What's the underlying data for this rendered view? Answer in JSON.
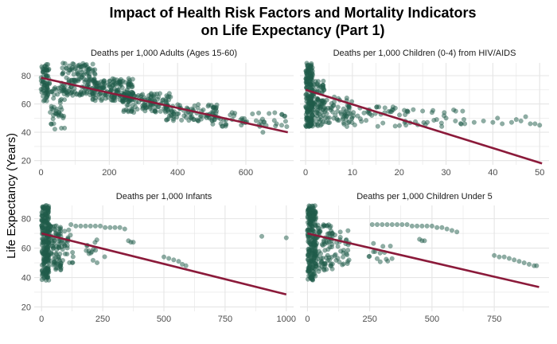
{
  "chart_data": {
    "type": "scatter",
    "title": [
      "Impact of Health Risk Factors and Mortality Indicators",
      "on Life Expectancy (Part 1)"
    ],
    "ylabel": "Life Expectancy (Years)",
    "ylim": [
      17,
      89
    ],
    "yticks": [
      20,
      40,
      60,
      80
    ],
    "colors": {
      "points": "#1f5c4a",
      "trend": "#8b1a3a",
      "grid": "#e5e5e5"
    },
    "grid": true,
    "panels": [
      {
        "title": "Deaths per 1,000 Adults (Ages 15-60)",
        "xlim": [
          -20,
          740
        ],
        "xticks": [
          0,
          200,
          400,
          600
        ],
        "trend": {
          "x": [
            0,
            723
          ],
          "y": [
            78.5,
            40
          ]
        },
        "clusters": [
          {
            "x": [
              0,
              25
            ],
            "y": [
              62,
              88
            ],
            "n": 70
          },
          {
            "x": [
              25,
              70
            ],
            "y": [
              42,
              72
            ],
            "n": 45
          },
          {
            "x": [
              60,
              160
            ],
            "y": [
              66,
              89
            ],
            "n": 140
          },
          {
            "x": [
              150,
              270
            ],
            "y": [
              62,
              78
            ],
            "n": 160
          },
          {
            "x": [
              240,
              380
            ],
            "y": [
              54,
              68
            ],
            "n": 120
          },
          {
            "x": [
              360,
              520
            ],
            "y": [
              48,
              60
            ],
            "n": 90
          },
          {
            "x": [
              500,
              720
            ],
            "y": [
              44,
              54
            ],
            "n": 45
          }
        ],
        "points": [
          [
            380,
            52
          ],
          [
            440,
            50
          ],
          [
            600,
            47
          ],
          [
            650,
            40
          ],
          [
            705,
            45
          ],
          [
            720,
            44
          ],
          [
            690,
            46
          ],
          [
            560,
            49
          ],
          [
            470,
            55
          ]
        ]
      },
      {
        "title": "Deaths per 1,000 Children (0-4) from HIV/AIDS",
        "xlim": [
          -1.2,
          52
        ],
        "xticks": [
          0,
          10,
          20,
          30,
          40,
          50
        ],
        "trend": {
          "x": [
            0,
            50.5
          ],
          "y": [
            70,
            18
          ]
        },
        "clusters": [
          {
            "x": [
              0,
              1.5
            ],
            "y": [
              44,
              89
            ],
            "n": 200
          },
          {
            "x": [
              1,
              4
            ],
            "y": [
              44,
              78
            ],
            "n": 80
          },
          {
            "x": [
              3,
              10
            ],
            "y": [
              45,
              65
            ],
            "n": 70
          },
          {
            "x": [
              8,
              22
            ],
            "y": [
              44,
              58
            ],
            "n": 45
          },
          {
            "x": [
              20,
              36
            ],
            "y": [
              44,
              56
            ],
            "n": 22
          }
        ],
        "points": [
          [
            38,
            48
          ],
          [
            40,
            47
          ],
          [
            42,
            46
          ],
          [
            44,
            47
          ],
          [
            46,
            48
          ],
          [
            47,
            51
          ],
          [
            48,
            46
          ],
          [
            49,
            46
          ],
          [
            50,
            45
          ],
          [
            45,
            49
          ],
          [
            41,
            50
          ],
          [
            36,
            47
          ],
          [
            34,
            46
          ],
          [
            32,
            48
          ],
          [
            30,
            50
          ],
          [
            28,
            49
          ],
          [
            26,
            47
          ],
          [
            25,
            55
          ],
          [
            27,
            54
          ],
          [
            23,
            56
          ]
        ]
      },
      {
        "title": "Deaths per 1,000 Infants",
        "xlim": [
          -30,
          1030
        ],
        "xticks": [
          0,
          250,
          500,
          750,
          1000
        ],
        "trend": {
          "x": [
            0,
            1000
          ],
          "y": [
            70,
            28.5
          ]
        },
        "clusters": [
          {
            "x": [
              0,
              30
            ],
            "y": [
              38,
              89
            ],
            "n": 220
          },
          {
            "x": [
              20,
              80
            ],
            "y": [
              45,
              76
            ],
            "n": 90
          },
          {
            "x": [
              70,
              130
            ],
            "y": [
              50,
              74
            ],
            "n": 30
          },
          {
            "x": [
              180,
              260
            ],
            "y": [
              50,
              66
            ],
            "n": 14
          }
        ],
        "points": [
          [
            120,
            76
          ],
          [
            140,
            75
          ],
          [
            160,
            75
          ],
          [
            180,
            75
          ],
          [
            200,
            75
          ],
          [
            220,
            75
          ],
          [
            240,
            75
          ],
          [
            260,
            74
          ],
          [
            280,
            74
          ],
          [
            300,
            74
          ],
          [
            320,
            74
          ],
          [
            340,
            73
          ],
          [
            355,
            65
          ],
          [
            365,
            64
          ],
          [
            375,
            64
          ],
          [
            500,
            54
          ],
          [
            520,
            53
          ],
          [
            540,
            52
          ],
          [
            560,
            51
          ],
          [
            575,
            49
          ],
          [
            590,
            48
          ],
          [
            900,
            68
          ],
          [
            1000,
            67
          ]
        ]
      },
      {
        "title": "Deaths per 1,000 Children Under 5",
        "xlim": [
          -30,
          970
        ],
        "xticks": [
          0,
          250,
          500,
          750
        ],
        "trend": {
          "x": [
            0,
            930
          ],
          "y": [
            70,
            33.5
          ]
        },
        "clusters": [
          {
            "x": [
              0,
              35
            ],
            "y": [
              38,
              89
            ],
            "n": 220
          },
          {
            "x": [
              25,
              100
            ],
            "y": [
              44,
              76
            ],
            "n": 90
          },
          {
            "x": [
              90,
              170
            ],
            "y": [
              48,
              72
            ],
            "n": 35
          },
          {
            "x": [
              240,
              340
            ],
            "y": [
              50,
              64
            ],
            "n": 14
          }
        ],
        "points": [
          [
            260,
            76
          ],
          [
            280,
            76
          ],
          [
            300,
            76
          ],
          [
            320,
            76
          ],
          [
            340,
            76
          ],
          [
            360,
            76
          ],
          [
            380,
            76
          ],
          [
            400,
            76
          ],
          [
            420,
            75
          ],
          [
            440,
            75
          ],
          [
            460,
            75
          ],
          [
            480,
            75
          ],
          [
            500,
            75
          ],
          [
            520,
            74
          ],
          [
            540,
            74
          ],
          [
            560,
            73
          ],
          [
            580,
            72
          ],
          [
            600,
            71
          ],
          [
            450,
            66
          ],
          [
            460,
            65
          ],
          [
            470,
            65
          ],
          [
            750,
            55
          ],
          [
            770,
            54
          ],
          [
            790,
            54
          ],
          [
            810,
            53
          ],
          [
            830,
            52
          ],
          [
            850,
            51
          ],
          [
            870,
            50
          ],
          [
            890,
            49
          ],
          [
            910,
            48
          ],
          [
            920,
            48
          ]
        ]
      }
    ]
  }
}
